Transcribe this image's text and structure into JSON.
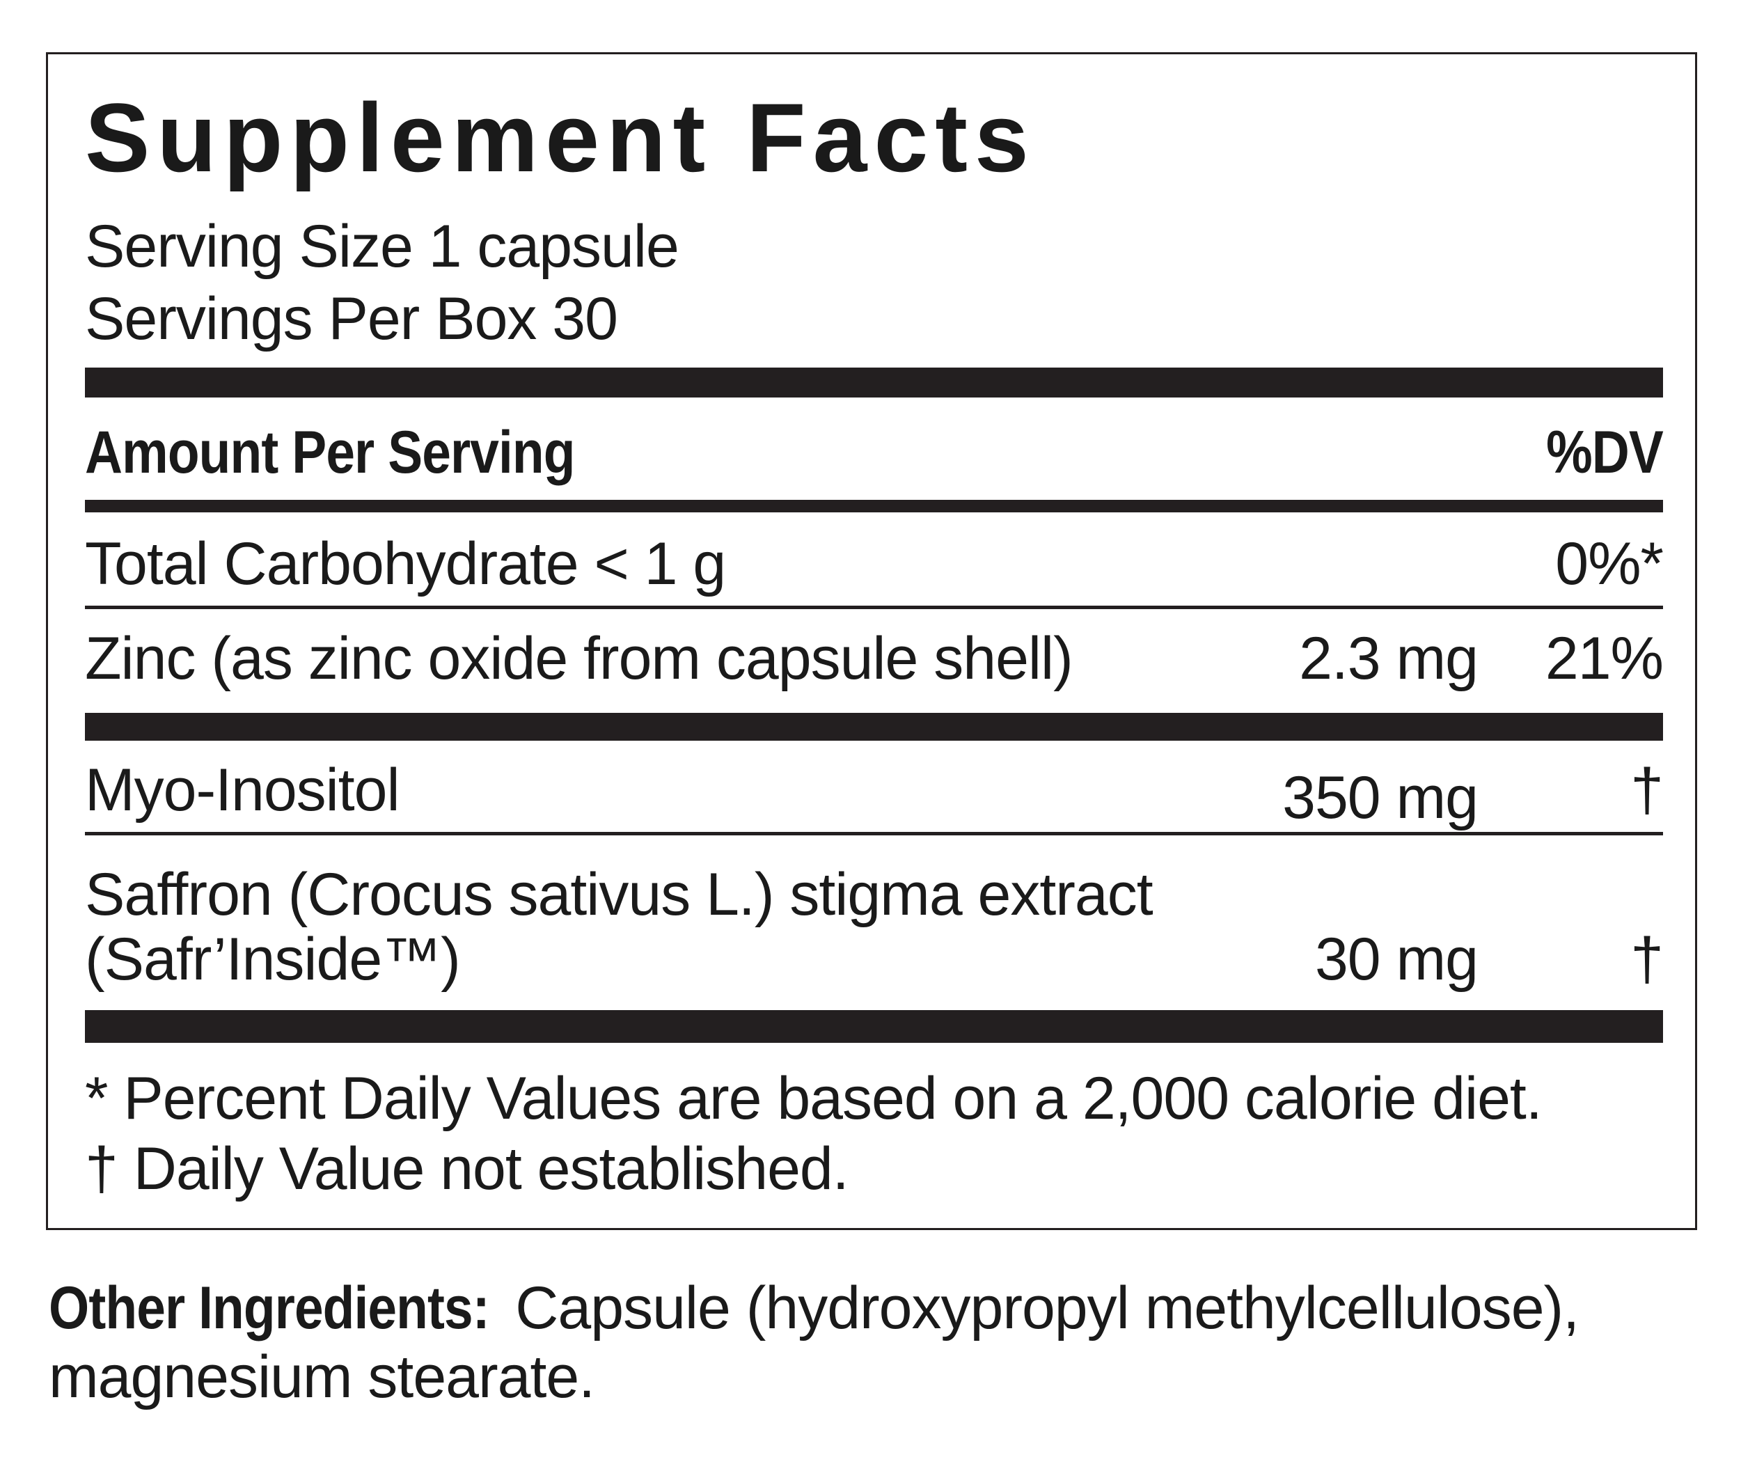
{
  "title": "Supplement Facts",
  "serving_size": "Serving Size 1 capsule",
  "servings_per": "Servings Per Box 30",
  "header": {
    "amount": "Amount Per Serving",
    "dv": "%DV"
  },
  "rows": [
    {
      "name": "Total Carbohydrate < 1 g",
      "amount": "",
      "dv": "0%*"
    },
    {
      "name": "Zinc (as zinc oxide from capsule shell)",
      "amount": "2.3 mg",
      "dv": "21%"
    },
    {
      "name": "Myo-Inositol",
      "amount": "350 mg",
      "dv": "†"
    },
    {
      "name": "Saffron (Crocus sativus L.) stigma extract",
      "name2": "(Safr’Inside™)",
      "amount": "30 mg",
      "dv": "†"
    }
  ],
  "footnotes": [
    "* Percent Daily Values are based on a 2,000 calorie diet.",
    "† Daily Value not established."
  ],
  "other": {
    "label": "Other Ingredients:",
    "text": " Capsule (hydroxypropyl methylcellulose),",
    "text2": "magnesium stearate."
  }
}
